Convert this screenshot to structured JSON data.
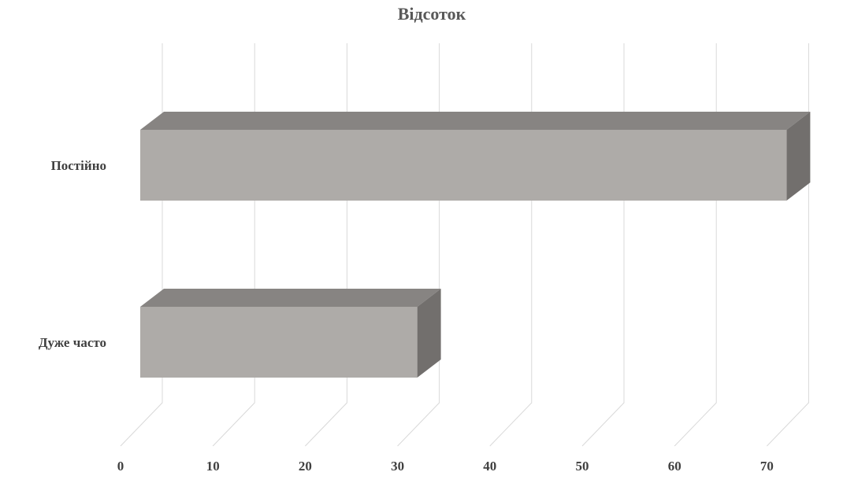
{
  "chart_data": {
    "type": "bar",
    "orientation": "horizontal",
    "three_d": true,
    "title": "Відсоток",
    "categories": [
      "Постійно",
      "Дуже часто"
    ],
    "series": [
      {
        "values": [
          70,
          30
        ]
      }
    ],
    "x_ticks": [
      "0",
      "10",
      "20",
      "30",
      "40",
      "50",
      "60",
      "70"
    ],
    "xlim": [
      0,
      70
    ],
    "xlabel": "",
    "ylabel": "",
    "grid": true,
    "legend": "none",
    "colors": {
      "bar_front": "#aeaba8",
      "bar_top": "#878482",
      "bar_side": "#726f6d",
      "grid": "#d9d9d9",
      "text": "#404040",
      "title": "#595959"
    }
  }
}
